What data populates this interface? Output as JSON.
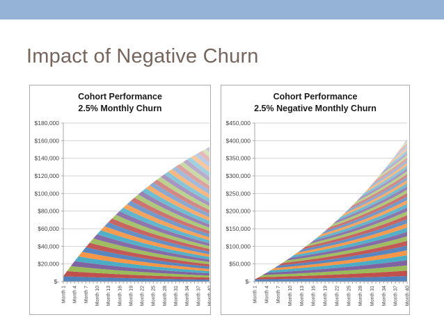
{
  "slide": {
    "title": "Impact of Negative Churn",
    "accent_color": "#95B3D7",
    "title_color": "#75655C",
    "background_color": "#ffffff",
    "card_border_color": "#ababab"
  },
  "chart_style": {
    "gridline_color": "#d3d3d3",
    "axis_color": "#a6a6a6",
    "tick_label_color": "#404040",
    "series_base_colors": [
      "#4F81BD",
      "#C0504D",
      "#9BBB59",
      "#8064A2",
      "#4BACC6",
      "#F79646"
    ]
  },
  "chart_data": [
    {
      "type": "area",
      "stacked": true,
      "title_line1": "Cohort Performance",
      "title_line2": "2.5% Monthly Churn",
      "months": 40,
      "cohort_count": 40,
      "new_cohort_monthly_revenue": 6000,
      "monthly_growth_rate": -0.025,
      "ylim": [
        0,
        180000
      ],
      "y_tick_step": 20000,
      "grid": true,
      "legend": "none",
      "y_tick_labels": [
        "$180,000",
        "$160,000",
        "$140,000",
        "$120,000",
        "$100,000",
        "$80,000",
        "$60,000",
        "$40,000",
        "$20,000",
        "$-"
      ],
      "x_tick_labels": [
        "Month 1",
        "Month 4",
        "Month 7",
        "Month 10",
        "Month 13",
        "Month 16",
        "Month 19",
        "Month 22",
        "Month 25",
        "Month 28",
        "Month 31",
        "Month 34",
        "Month 37",
        "Month 40"
      ],
      "x_label_every": 3,
      "total_revenue_by_month": [
        6000,
        11850,
        17554,
        23115,
        28537,
        33824,
        38978,
        44004,
        48903,
        53681,
        58339,
        62880,
        67308,
        71626,
        75835,
        79939,
        83941,
        87842,
        91646,
        95355,
        98971,
        102497,
        105934,
        109286,
        112554,
        115740,
        118846,
        121875,
        124828,
        127708,
        130515,
        133252,
        135921,
        138523,
        141060,
        143533,
        145945,
        148296,
        150589,
        152824
      ]
    },
    {
      "type": "area",
      "stacked": true,
      "title_line1": "Cohort Performance",
      "title_line2": "2.5% Negative Monthly Churn",
      "months": 40,
      "cohort_count": 40,
      "new_cohort_monthly_revenue": 6000,
      "monthly_growth_rate": 0.025,
      "ylim": [
        0,
        450000
      ],
      "y_tick_step": 50000,
      "grid": true,
      "legend": "none",
      "y_tick_labels": [
        "$450,000",
        "$400,000",
        "$350,000",
        "$300,000",
        "$250,000",
        "$200,000",
        "$150,000",
        "$100,000",
        "$50,000",
        "$-"
      ],
      "x_tick_labels": [
        "Month 1",
        "Month 4",
        "Month 7",
        "Month 10",
        "Month 13",
        "Month 16",
        "Month 19",
        "Month 22",
        "Month 25",
        "Month 28",
        "Month 31",
        "Month 34",
        "Month 37",
        "Month 40"
      ],
      "x_label_every": 3,
      "total_revenue_by_month": [
        6000,
        12150,
        18454,
        24915,
        31538,
        38326,
        45285,
        52417,
        59727,
        67220,
        74901,
        82773,
        90843,
        99114,
        107592,
        116281,
        125188,
        134318,
        143676,
        153268,
        163100,
        173177,
        183507,
        194094,
        204947,
        216070,
        227472,
        239159,
        251138,
        263416,
        276002,
        288902,
        302124,
        315677,
        329569,
        343808,
        358404,
        373364,
        388698,
        404415
      ]
    }
  ]
}
